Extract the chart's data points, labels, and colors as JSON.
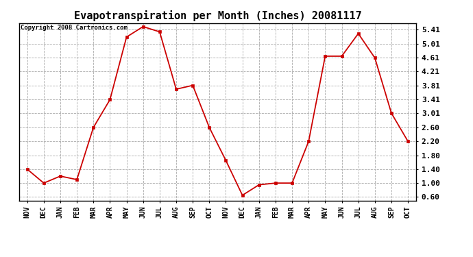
{
  "title": "Evapotranspiration per Month (Inches) 20081117",
  "copyright_text": "Copyright 2008 Cartronics.com",
  "months": [
    "NOV",
    "DEC",
    "JAN",
    "FEB",
    "MAR",
    "APR",
    "MAY",
    "JUN",
    "JUL",
    "AUG",
    "SEP",
    "OCT",
    "NOV",
    "DEC",
    "JAN",
    "FEB",
    "MAR",
    "APR",
    "MAY",
    "JUN",
    "JUL",
    "AUG",
    "SEP",
    "OCT"
  ],
  "values": [
    1.4,
    1.0,
    1.2,
    1.1,
    2.6,
    3.4,
    5.2,
    5.5,
    5.35,
    3.7,
    3.81,
    2.6,
    1.65,
    0.65,
    0.95,
    1.0,
    1.0,
    2.2,
    4.65,
    4.65,
    5.3,
    4.6,
    3.01,
    2.2
  ],
  "line_color": "#cc0000",
  "marker": "s",
  "marker_size": 3,
  "bg_color": "#ffffff",
  "grid_color": "#aaaaaa",
  "ytick_labels": [
    "0.60",
    "1.00",
    "1.40",
    "1.80",
    "2.20",
    "2.60",
    "3.01",
    "3.41",
    "3.81",
    "4.21",
    "4.61",
    "5.01",
    "5.41"
  ],
  "ytick_values": [
    0.6,
    1.0,
    1.4,
    1.8,
    2.2,
    2.6,
    3.01,
    3.41,
    3.81,
    4.21,
    4.61,
    5.01,
    5.41
  ],
  "ylim": [
    0.5,
    5.6
  ],
  "title_fontsize": 11,
  "copyright_fontsize": 6.5,
  "tick_fontsize": 7,
  "ytick_fontsize": 8
}
